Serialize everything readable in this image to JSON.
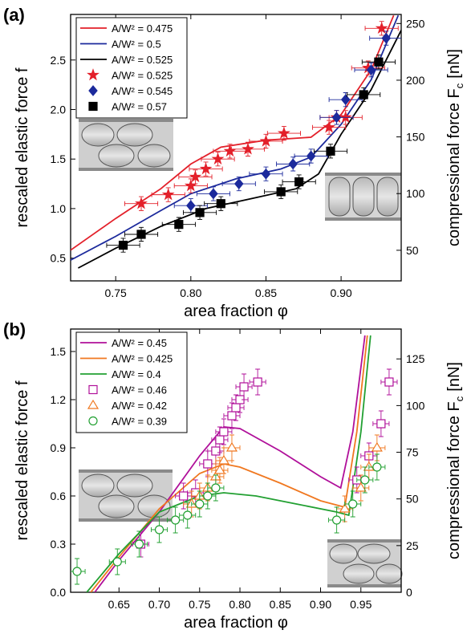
{
  "chart_data": [
    {
      "type": "scatter",
      "panel_label": "(a)",
      "xlabel": "area fraction φ",
      "ylabel": "rescaled elastic force f",
      "y2label": "compressional force F",
      "y2label_sub": "c",
      "y2label_unit": "[nN]",
      "xlim": [
        0.72,
        0.94
      ],
      "ylim": [
        0.27,
        2.96
      ],
      "y2lim": [
        23,
        258
      ],
      "xticks": [
        0.75,
        {
          "value": 0.8,
          "label": "0.80"
        },
        0.85,
        {
          "value": 0.9,
          "label": "0.90"
        }
      ],
      "yticks": [
        0.5,
        {
          "value": 1,
          "label": "1.0"
        },
        1.5,
        {
          "value": 2,
          "label": "2.0"
        },
        2.5
      ],
      "y2ticks": [
        50,
        100,
        150,
        200,
        250
      ],
      "series": [
        {
          "name": "A/W² = 0.475",
          "color": "#e3202a",
          "style": "line",
          "x": [
            0.72,
            0.75,
            0.78,
            0.8,
            0.82,
            0.85,
            0.88,
            0.9,
            0.92,
            0.935
          ],
          "values": [
            0.58,
            0.9,
            1.2,
            1.45,
            1.62,
            1.69,
            1.72,
            1.95,
            2.4,
            2.95
          ]
        },
        {
          "name": "A/W² = 0.5",
          "color": "#1c2a9c",
          "style": "line",
          "x": [
            0.72,
            0.75,
            0.78,
            0.8,
            0.83,
            0.86,
            0.88,
            0.9,
            0.92,
            0.938
          ],
          "values": [
            0.48,
            0.72,
            0.98,
            1.15,
            1.3,
            1.4,
            1.52,
            1.85,
            2.3,
            2.95
          ]
        },
        {
          "name": "A/W² = 0.525",
          "color": "#000000",
          "style": "line",
          "x": [
            0.725,
            0.75,
            0.78,
            0.81,
            0.84,
            0.87,
            0.885,
            0.9,
            0.92,
            0.94
          ],
          "values": [
            0.4,
            0.6,
            0.82,
            1.0,
            1.1,
            1.2,
            1.35,
            1.75,
            2.2,
            2.8
          ]
        },
        {
          "name": "A/W² = 0.525",
          "color": "#e3202a",
          "style": "marker",
          "marker": "star",
          "open": false,
          "xerr": 0.011,
          "yerr": 0.07,
          "x": [
            0.767,
            0.785,
            0.8,
            0.803,
            0.81,
            0.818,
            0.826,
            0.838,
            0.85,
            0.862,
            0.892,
            0.897,
            0.903,
            0.918,
            0.927
          ],
          "values": [
            1.05,
            1.14,
            1.23,
            1.32,
            1.4,
            1.5,
            1.58,
            1.6,
            1.68,
            1.76,
            1.82,
            1.92,
            1.92,
            2.42,
            2.82
          ]
        },
        {
          "name": "A/W² = 0.545",
          "color": "#1c2a9c",
          "style": "marker",
          "marker": "diamond",
          "open": false,
          "xerr": 0.011,
          "yerr": 0.07,
          "x": [
            0.8,
            0.815,
            0.832,
            0.85,
            0.868,
            0.88,
            0.897,
            0.903,
            0.92,
            0.93
          ],
          "values": [
            1.03,
            1.15,
            1.25,
            1.35,
            1.45,
            1.53,
            1.92,
            2.1,
            2.4,
            2.72
          ]
        },
        {
          "name": "A/W² = 0.57",
          "color": "#000000",
          "style": "marker",
          "marker": "square",
          "open": false,
          "xerr": 0.011,
          "yerr": 0.07,
          "x": [
            0.755,
            0.767,
            0.792,
            0.806,
            0.82,
            0.86,
            0.872,
            0.893,
            0.915,
            0.925
          ],
          "values": [
            0.63,
            0.74,
            0.84,
            0.96,
            1.05,
            1.17,
            1.27,
            1.58,
            2.15,
            2.48
          ]
        }
      ]
    },
    {
      "type": "scatter",
      "panel_label": "(b)",
      "xlabel": "area fraction φ",
      "ylabel": "rescaled elastic force f",
      "y2label": "compressional force F",
      "y2label_sub": "c",
      "y2label_unit": "[nN]",
      "xlim": [
        0.59,
        1.0
      ],
      "ylim": [
        0,
        1.64
      ],
      "y2lim": [
        0,
        141
      ],
      "xticks": [
        0.65,
        {
          "value": 0.7,
          "label": "0.70"
        },
        0.75,
        {
          "value": 0.8,
          "label": "0.80"
        },
        0.85,
        {
          "value": 0.9,
          "label": "0.90"
        },
        0.95
      ],
      "yticks": [
        {
          "value": 0,
          "label": "0.0"
        },
        0.3,
        0.6,
        0.9,
        1.2,
        1.5
      ],
      "y2ticks": [
        0,
        25,
        50,
        75,
        100,
        125
      ],
      "series": [
        {
          "name": "A/W² = 0.45",
          "color": "#b0109a",
          "style": "line",
          "x": [
            0.62,
            0.65,
            0.7,
            0.75,
            0.78,
            0.8,
            0.85,
            0.9,
            0.925,
            0.94,
            0.955
          ],
          "values": [
            0,
            0.2,
            0.5,
            0.85,
            1.03,
            1.02,
            0.88,
            0.72,
            0.65,
            1.0,
            1.6
          ]
        },
        {
          "name": "A/W² = 0.425",
          "color": "#f07820",
          "style": "line",
          "x": [
            0.615,
            0.65,
            0.7,
            0.75,
            0.78,
            0.8,
            0.85,
            0.9,
            0.93,
            0.945,
            0.958
          ],
          "values": [
            0,
            0.22,
            0.52,
            0.74,
            0.8,
            0.78,
            0.68,
            0.57,
            0.53,
            1.0,
            1.6
          ]
        },
        {
          "name": "A/W² = 0.4",
          "color": "#22a032",
          "style": "line",
          "x": [
            0.61,
            0.65,
            0.7,
            0.75,
            0.78,
            0.82,
            0.87,
            0.92,
            0.935,
            0.95,
            0.962
          ],
          "values": [
            0,
            0.24,
            0.5,
            0.6,
            0.62,
            0.6,
            0.55,
            0.5,
            0.48,
            1.0,
            1.6
          ]
        },
        {
          "name": "A/W² = 0.46",
          "color": "#b0109a",
          "style": "marker",
          "marker": "square",
          "open": true,
          "xerr": 0.01,
          "yerr": 0.08,
          "x": [
            0.677,
            0.73,
            0.745,
            0.76,
            0.77,
            0.775,
            0.78,
            0.79,
            0.795,
            0.8,
            0.805,
            0.822,
            0.945,
            0.96,
            0.975,
            0.985
          ],
          "values": [
            0.3,
            0.6,
            0.62,
            0.8,
            0.88,
            0.95,
            1.0,
            1.1,
            1.15,
            1.2,
            1.28,
            1.31,
            0.7,
            0.85,
            1.05,
            1.31
          ]
        },
        {
          "name": "A/W² = 0.42",
          "color": "#f07820",
          "style": "marker",
          "marker": "triangle",
          "open": true,
          "xerr": 0.01,
          "yerr": 0.08,
          "x": [
            0.74,
            0.75,
            0.76,
            0.77,
            0.775,
            0.78,
            0.79,
            0.93,
            0.95,
            0.96,
            0.97
          ],
          "values": [
            0.55,
            0.6,
            0.65,
            0.72,
            0.76,
            0.82,
            0.9,
            0.52,
            0.65,
            0.78,
            0.9
          ]
        },
        {
          "name": "A/W² = 0.39",
          "color": "#22a032",
          "style": "marker",
          "marker": "circle",
          "open": true,
          "xerr": 0.01,
          "yerr": 0.08,
          "x": [
            0.598,
            0.648,
            0.675,
            0.7,
            0.72,
            0.735,
            0.75,
            0.76,
            0.77,
            0.92,
            0.94,
            0.955,
            0.97
          ],
          "values": [
            0.13,
            0.19,
            0.3,
            0.39,
            0.45,
            0.48,
            0.55,
            0.6,
            0.65,
            0.45,
            0.55,
            0.7,
            0.78
          ]
        }
      ]
    }
  ]
}
